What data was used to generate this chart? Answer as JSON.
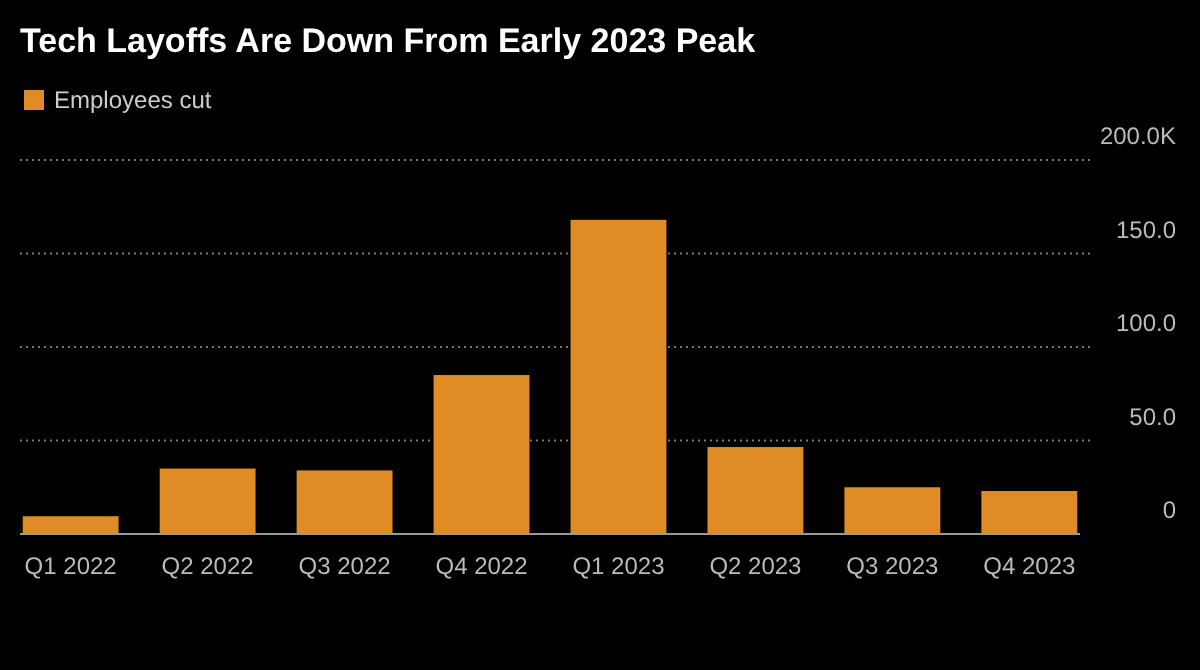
{
  "chart_data": {
    "type": "bar",
    "title": "Tech Layoffs Are Down From Early 2023 Peak",
    "categories": [
      "Q1 2022",
      "Q2 2022",
      "Q3 2022",
      "Q4 2022",
      "Q1 2023",
      "Q2 2023",
      "Q3 2023",
      "Q4 2023"
    ],
    "series": [
      {
        "name": "Employees cut",
        "color": "#e08c26",
        "values": [
          9.5,
          35,
          34,
          85,
          168,
          46.5,
          25,
          23
        ]
      }
    ],
    "ylim": [
      0,
      200
    ],
    "yticks": [
      0,
      {
        "value": 50,
        "label": "50.0"
      },
      {
        "value": 100,
        "label": "100.0"
      },
      {
        "value": 150,
        "label": "150.0"
      },
      {
        "value": 200,
        "label": "200.0K"
      }
    ],
    "grid": "y",
    "legend": "top left"
  }
}
